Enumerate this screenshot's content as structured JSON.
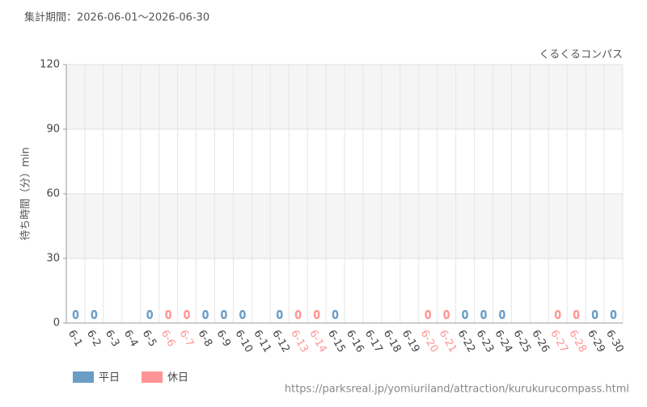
{
  "period": "集計期間：2026-06-01～2026-06-30",
  "source": "https://parksreal.jp/yomiuriland/attraction/kurukurucompass.html",
  "chart_data": {
    "type": "bar",
    "title": "くるくるコンパス",
    "y_label": "待ち時間（分）min",
    "categories": [
      "6-1",
      "6-2",
      "6-3",
      "6-4",
      "6-5",
      "6-6",
      "6-7",
      "6-8",
      "6-9",
      "6-10",
      "6-11",
      "6-12",
      "6-13",
      "6-14",
      "6-15",
      "6-16",
      "6-17",
      "6-18",
      "6-19",
      "6-20",
      "6-21",
      "6-22",
      "6-23",
      "6-24",
      "6-25",
      "6-26",
      "6-27",
      "6-28",
      "6-29",
      "6-30"
    ],
    "series": [
      {
        "name": "平日",
        "color": "#6a9cc6",
        "values": [
          0,
          0,
          null,
          null,
          0,
          null,
          null,
          0,
          0,
          0,
          null,
          0,
          null,
          null,
          0,
          null,
          null,
          null,
          null,
          null,
          null,
          0,
          0,
          0,
          null,
          null,
          null,
          null,
          0,
          0
        ]
      },
      {
        "name": "休日",
        "color": "#ff9494",
        "values": [
          null,
          null,
          null,
          null,
          null,
          0,
          0,
          null,
          null,
          null,
          null,
          null,
          0,
          0,
          null,
          null,
          null,
          null,
          null,
          0,
          0,
          null,
          null,
          null,
          null,
          null,
          0,
          0,
          null,
          null
        ]
      }
    ],
    "ylim": [
      0,
      120
    ],
    "yticks": [
      0,
      30,
      60,
      90,
      120
    ],
    "grid": true
  }
}
